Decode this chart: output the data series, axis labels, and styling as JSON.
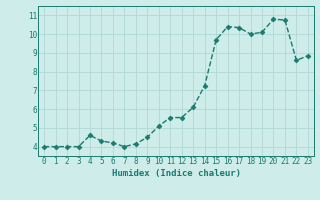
{
  "x": [
    0,
    1,
    2,
    3,
    4,
    5,
    6,
    7,
    8,
    9,
    10,
    11,
    12,
    13,
    14,
    15,
    16,
    17,
    18,
    19,
    20,
    21,
    22,
    23
  ],
  "y": [
    4.0,
    4.0,
    4.0,
    4.0,
    4.6,
    4.3,
    4.2,
    4.0,
    4.15,
    4.5,
    5.1,
    5.55,
    5.55,
    6.1,
    7.25,
    9.7,
    10.4,
    10.35,
    10.0,
    10.1,
    10.8,
    10.75,
    8.6,
    8.85
  ],
  "line_color": "#1a7a6e",
  "marker": "D",
  "marker_size": 2.5,
  "bg_color": "#ceecea",
  "grid_color": "#b0d8d4",
  "xlabel": "Humidex (Indice chaleur)",
  "ylim": [
    3.5,
    11.5
  ],
  "xlim": [
    -0.5,
    23.5
  ],
  "yticks": [
    4,
    5,
    6,
    7,
    8,
    9,
    10,
    11
  ],
  "xticks": [
    0,
    1,
    2,
    3,
    4,
    5,
    6,
    7,
    8,
    9,
    10,
    11,
    12,
    13,
    14,
    15,
    16,
    17,
    18,
    19,
    20,
    21,
    22,
    23
  ],
  "tick_color": "#1a7a6e",
  "label_color": "#1a7a6e",
  "font_family": "monospace",
  "tick_fontsize": 5.5,
  "xlabel_fontsize": 6.5,
  "linewidth": 1.0
}
